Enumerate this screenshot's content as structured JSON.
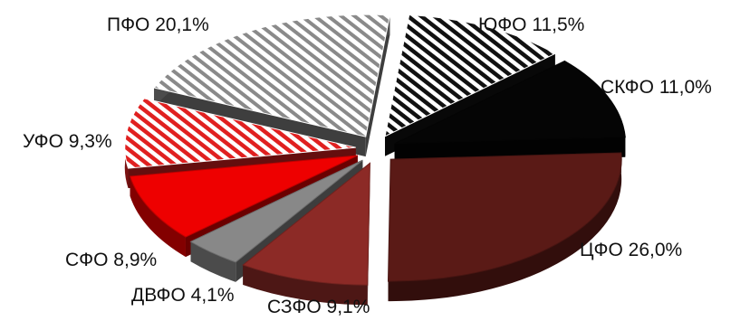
{
  "chart_data": {
    "type": "pie",
    "style": "exploded 3D pie",
    "legend": "none",
    "title": "",
    "slices": [
      {
        "label": "ЮФО",
        "value": 11.5,
        "display": "ЮФО 11,5%",
        "fill": "hatch-black",
        "color": "#111111"
      },
      {
        "label": "СКФО",
        "value": 11.0,
        "display": "СКФО 11,0%",
        "fill": "solid",
        "color": "#050505"
      },
      {
        "label": "ЦФО",
        "value": 26.0,
        "display": "ЦФО 26,0%",
        "fill": "solid",
        "color": "#5a1a16"
      },
      {
        "label": "СЗФО",
        "value": 9.1,
        "display": "СЗФО 9,1%",
        "fill": "solid",
        "color": "#8c2a26"
      },
      {
        "label": "ДВФО",
        "value": 4.1,
        "display": "ДВФО 4,1%",
        "fill": "solid",
        "color": "#888888"
      },
      {
        "label": "СФО",
        "value": 8.9,
        "display": "СФО 8,9%",
        "fill": "solid",
        "color": "#ee0000"
      },
      {
        "label": "УФО",
        "value": 9.3,
        "display": "УФО 9,3%",
        "fill": "hatch-red",
        "color": "#e02020"
      },
      {
        "label": "ПФО",
        "value": 20.1,
        "display": "ПФО 20,1%",
        "fill": "hatch-gray",
        "color": "#8a8a8a"
      }
    ]
  }
}
